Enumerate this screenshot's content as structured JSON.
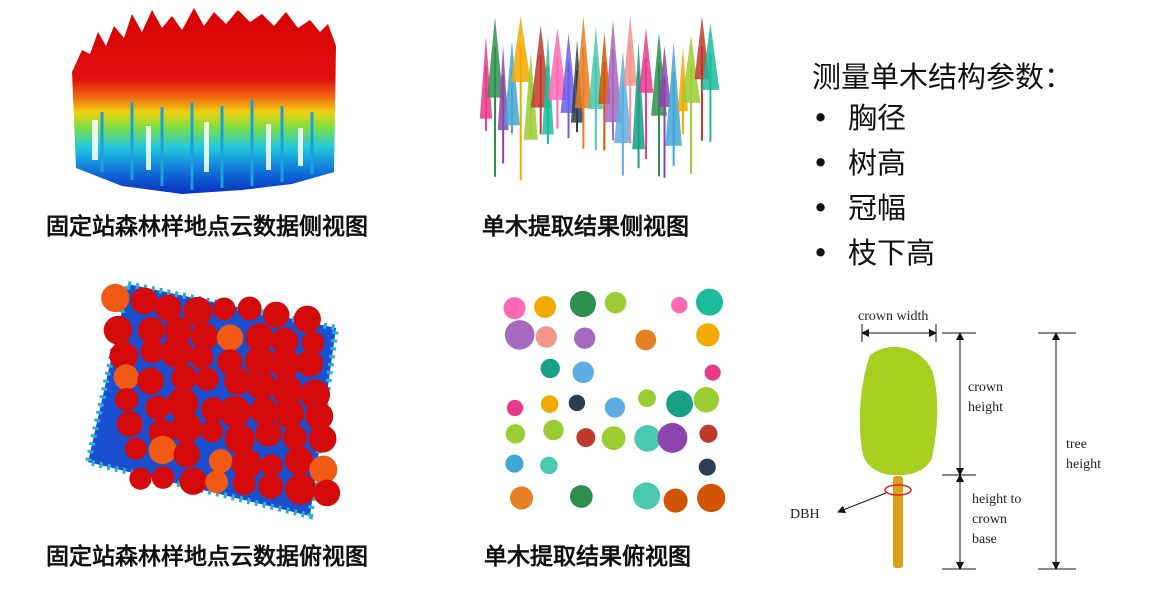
{
  "captions": {
    "side_cloud": "固定站森林样地点云数据侧视图",
    "side_trees": "单木提取结果侧视图",
    "top_cloud": "固定站森林样地点云数据俯视图",
    "top_trees": "单木提取结果俯视图"
  },
  "params": {
    "title": "测量单木结构参数：",
    "items": [
      {
        "label": "胸径"
      },
      {
        "label": "树高"
      },
      {
        "label": "冠幅"
      },
      {
        "label": "枝下高"
      }
    ]
  },
  "diagram": {
    "crown_width": "crown width",
    "crown_height_1": "crown",
    "crown_height_2": "height",
    "tree_height_1": "tree",
    "tree_height_2": "height",
    "htcb_1": "height to",
    "htcb_2": "crown",
    "htcb_3": "base",
    "dbh": "DBH",
    "colors": {
      "crown": "#a6cf1f",
      "trunk": "#d9a21a",
      "dbh_ring": "#e0201c"
    }
  }
}
